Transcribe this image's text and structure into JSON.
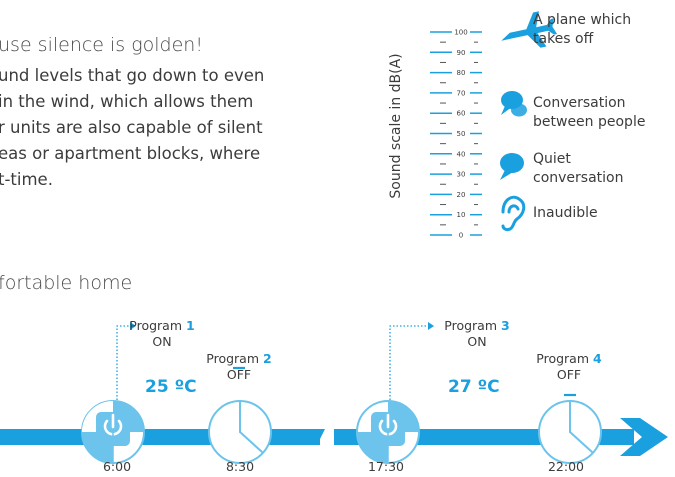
{
  "article": {
    "heading_top": "use silence is golden!",
    "paragraph_lines": [
      "und levels that go down to even",
      " in the wind, which allows them",
      "r units are also capable of silent",
      "eas or apartment blocks, where",
      "t-time."
    ],
    "heading_bottom": "fortable home"
  },
  "sound_scale": {
    "axis_label": "Sound scale in dB(A)",
    "ticks": [
      0,
      10,
      20,
      30,
      40,
      50,
      60,
      70,
      80,
      90,
      100
    ],
    "range": [
      0,
      100
    ],
    "accent_color": "#1aa0de",
    "legend": [
      {
        "icon": "airplane-icon",
        "label": "A plane which takes off",
        "level_db": 100
      },
      {
        "icon": "speech-bubbles-icon",
        "label": "Conversation between people",
        "level_db": 60
      },
      {
        "icon": "speech-bubble-icon",
        "label": "Quiet conversation",
        "level_db": 40
      },
      {
        "icon": "ear-icon",
        "label": "Inaudible",
        "level_db": 10
      }
    ]
  },
  "timeline": {
    "programs": [
      {
        "word": "Program",
        "number": "1",
        "state": "ON"
      },
      {
        "word": "Program",
        "number": "2",
        "state": "OFF"
      },
      {
        "word": "Program",
        "number": "3",
        "state": "ON"
      },
      {
        "word": "Program",
        "number": "4",
        "state": "OFF"
      }
    ],
    "temperatures": [
      "25 ºC",
      "27 ºC"
    ],
    "clocks": [
      {
        "time": "6:00",
        "icon": "power-icon"
      },
      {
        "time": "8:30",
        "icon": "clock-icon"
      },
      {
        "time": "17:30",
        "icon": "power-icon"
      },
      {
        "time": "22:00",
        "icon": "clock-icon"
      }
    ],
    "arrow_color": "#1aa0de"
  }
}
